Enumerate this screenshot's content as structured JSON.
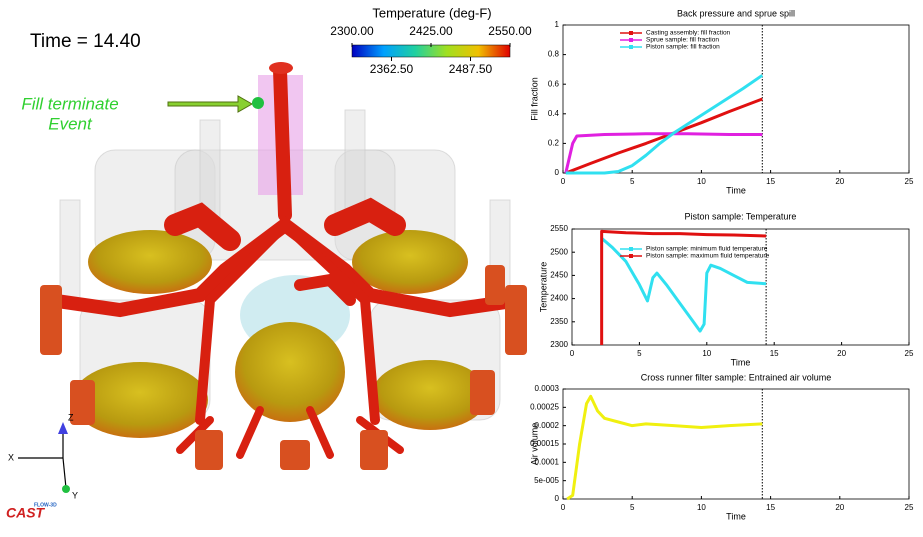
{
  "scene": {
    "time_label": "Time = 14.40",
    "annotation_line1": "Fill terminate",
    "annotation_line2": "Event",
    "axis_x": "X",
    "axis_y": "Y",
    "axis_z": "Z",
    "logo_top": "FLOW-3D",
    "logo": "CAST"
  },
  "colorbar": {
    "title": "Temperature (deg-F)",
    "range": [
      2300,
      2550
    ],
    "ticks": [
      {
        "value": 2300,
        "label": "2300.00"
      },
      {
        "value": 2362.5,
        "label": "2362.50"
      },
      {
        "value": 2425,
        "label": "2425.00"
      },
      {
        "value": 2487.5,
        "label": "2487.50"
      },
      {
        "value": 2550,
        "label": "2550.00"
      }
    ]
  },
  "chart_data": [
    {
      "type": "line",
      "title": "Back pressure and sprue spill",
      "x_label": "Time",
      "y_label": "Fill fraction",
      "xlim": [
        0,
        25
      ],
      "xticks": [
        0,
        5,
        10,
        15,
        20,
        25
      ],
      "ylim": [
        0,
        1
      ],
      "yticks": [
        0,
        0.2,
        0.4,
        0.6,
        0.8,
        1
      ],
      "time_marker": 14.4,
      "series": [
        {
          "name": "Casting assembly: fill fraction",
          "color": "#e01010",
          "x": [
            0.2,
            2,
            4,
            6,
            8,
            10,
            12,
            14.4
          ],
          "values": [
            0,
            0.065,
            0.135,
            0.2,
            0.27,
            0.34,
            0.415,
            0.5
          ]
        },
        {
          "name": "Sprue sample: fill fraction",
          "color": "#e020e0",
          "x": [
            0.2,
            0.7,
            1,
            3,
            6,
            9,
            12,
            14.4
          ],
          "values": [
            0,
            0.2,
            0.25,
            0.26,
            0.265,
            0.265,
            0.26,
            0.26
          ]
        },
        {
          "name": "Piston sample: fill fraction",
          "color": "#30e0f0",
          "x": [
            0.2,
            3,
            4,
            5,
            6,
            7,
            8,
            9,
            10,
            11,
            12,
            13,
            14.4
          ],
          "values": [
            0,
            0,
            0.01,
            0.05,
            0.12,
            0.2,
            0.27,
            0.33,
            0.39,
            0.45,
            0.51,
            0.57,
            0.66
          ]
        }
      ]
    },
    {
      "type": "line",
      "title": "Piston sample: Temperature",
      "x_label": "Time",
      "y_label": "Temperature",
      "xlim": [
        0,
        25
      ],
      "xticks": [
        0,
        5,
        10,
        15,
        20,
        25
      ],
      "ylim": [
        2300,
        2550
      ],
      "yticks": [
        2300,
        2350,
        2400,
        2450,
        2500,
        2550
      ],
      "time_marker": 14.4,
      "series": [
        {
          "name": "Piston sample: minimum fluid temperature",
          "color": "#30e0f0",
          "x": [
            2.2,
            3,
            4,
            5,
            5.6,
            6,
            6.3,
            7,
            8,
            9,
            9.5,
            9.8,
            10,
            10.3,
            11,
            12,
            13,
            14.4
          ],
          "values": [
            2530,
            2510,
            2480,
            2430,
            2395,
            2445,
            2455,
            2430,
            2390,
            2350,
            2330,
            2345,
            2455,
            2472,
            2465,
            2450,
            2435,
            2432
          ]
        },
        {
          "name": "Piston sample: maximum fluid temperature",
          "color": "#e01010",
          "x": [
            2.2,
            2.2,
            4,
            6,
            8,
            10,
            12,
            14.4
          ],
          "values": [
            2300,
            2545,
            2542,
            2540,
            2540,
            2538,
            2537,
            2535
          ]
        }
      ]
    },
    {
      "type": "line",
      "title": "Cross runner filter sample: Entrained air volume",
      "x_label": "Time",
      "y_label": "Air volume",
      "xlim": [
        0,
        25
      ],
      "xticks": [
        0,
        5,
        10,
        15,
        20,
        25
      ],
      "ylim": [
        0,
        0.0003
      ],
      "yticks": [
        0,
        {
          "value": 5e-05,
          "label": "5e-005"
        },
        0.0001,
        0.00015,
        0.0002,
        0.00025,
        0.0003
      ],
      "time_marker": 14.4,
      "series": [
        {
          "name": "Cross runner filter sample",
          "color": "#f0f010",
          "x": [
            0.3,
            0.7,
            1.2,
            1.7,
            2,
            2.5,
            3,
            4,
            5,
            6,
            8,
            10,
            12,
            14.4
          ],
          "values": [
            0,
            1e-05,
            0.00015,
            0.00026,
            0.00028,
            0.00024,
            0.00022,
            0.00021,
            0.0002,
            0.000205,
            0.0002,
            0.000195,
            0.0002,
            0.000205
          ]
        }
      ]
    }
  ]
}
